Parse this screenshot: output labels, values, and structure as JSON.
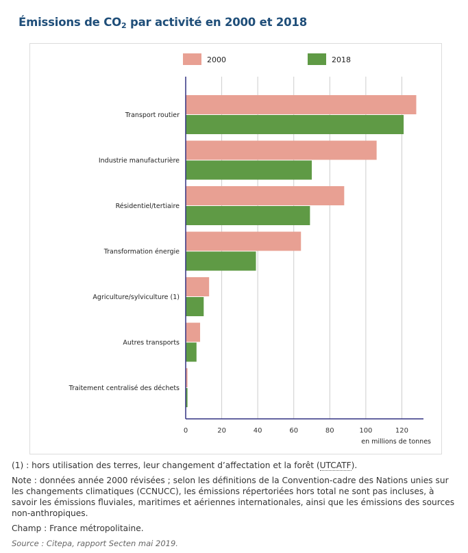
{
  "title": {
    "prefix": "Émissions de CO",
    "subscript": "2",
    "suffix": " par activité en 2000 et 2018"
  },
  "colors": {
    "series_2000": "#e8a093",
    "series_2018": "#5f9a45",
    "axis": "#303080",
    "grid": "#cccccc"
  },
  "chart_data": {
    "type": "bar",
    "orientation": "horizontal",
    "categories": [
      "Transport routier",
      "Industrie manufacturière",
      "Résidentiel/tertiaire",
      "Transformation énergie",
      "Agriculture/sylviculture (1)",
      "Autres transports",
      "Traitement centralisé des déchets"
    ],
    "series": [
      {
        "name": "2000",
        "values": [
          128,
          106,
          88,
          64,
          13,
          8,
          1
        ]
      },
      {
        "name": "2018",
        "values": [
          121,
          70,
          69,
          39,
          10,
          6,
          1
        ]
      }
    ],
    "xticks": [
      "0",
      "20",
      "40",
      "60",
      "80",
      "100",
      "120"
    ],
    "xlim": [
      0,
      132
    ],
    "xlabel": "en millions de tonnes",
    "legend_position": "top",
    "grid": true
  },
  "notes": {
    "note1_prefix": "(1) : hors utilisation des terres, leur changement d’affectation et la forêt (",
    "note1_abbr": "UTCATF",
    "note1_suffix": ").",
    "note2": "Note : données année 2000 révisées ; selon les définitions de la Convention-cadre des Nations unies sur les changements climatiques (CCNUCC), les émissions répertoriées hors total ne sont pas incluses, à savoir les émissions fluviales, maritimes et aériennes internationales, ainsi que les émissions des sources non-anthropiques.",
    "champ": "Champ : France métropolitaine.",
    "source": "Source : Citepa, rapport Secten mai 2019."
  }
}
